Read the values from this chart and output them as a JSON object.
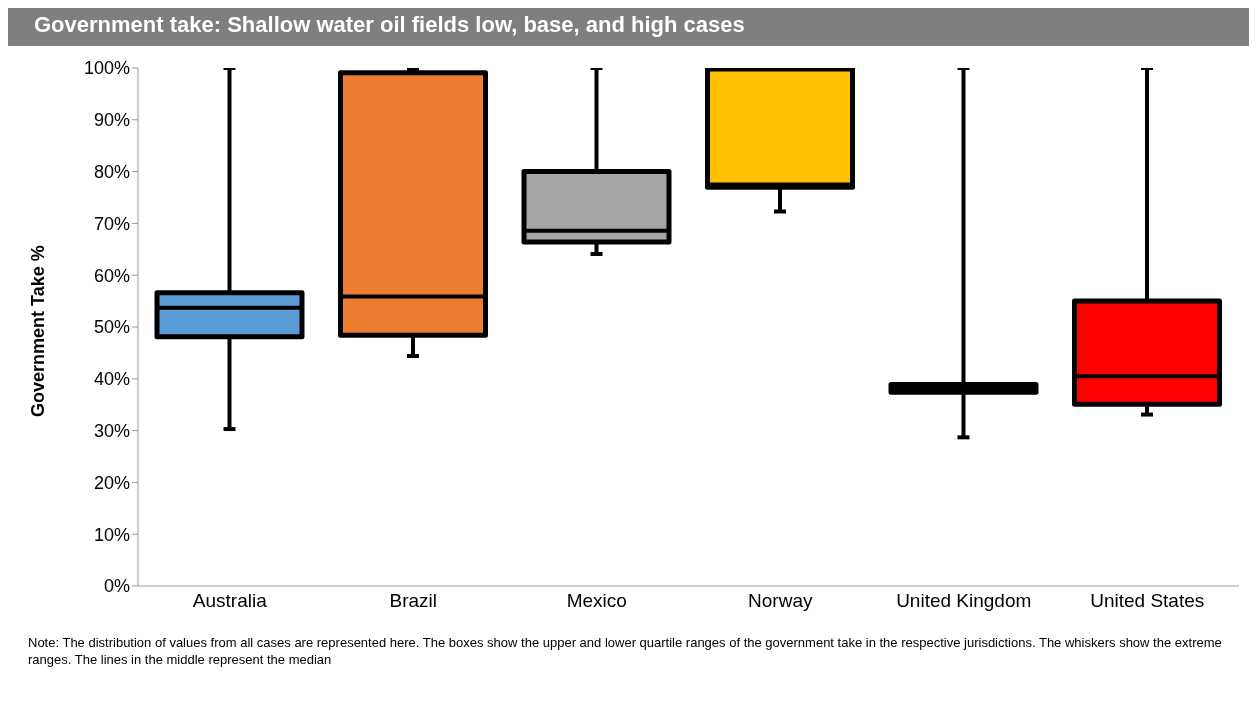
{
  "chart_data": {
    "type": "box",
    "title": "Government take: Shallow water oil fields   low, base, and high cases",
    "ylabel": "Government Take %",
    "categories": [
      "Australia",
      "Brazil",
      "Mexico",
      "Norway",
      "United Kingdom",
      "United States"
    ],
    "colors": [
      "#5b9bd5",
      "#ed7d31",
      "#a5a5a5",
      "#ffc000",
      "#1f3864",
      "#ff0000"
    ],
    "boxes": [
      {
        "low": 30.3,
        "q1": 48.1,
        "median": 53.7,
        "q3": 56.6,
        "high": 100
      },
      {
        "low": 44.4,
        "q1": 48.4,
        "median": 55.9,
        "q3": 99.1,
        "high": 99.8
      },
      {
        "low": 64.1,
        "q1": 66.4,
        "median": 68.6,
        "q3": 80.0,
        "high": 100
      },
      {
        "low": 72.3,
        "q1": 77.0,
        "median": 77.5,
        "q3": 99.8,
        "high": 100
      },
      {
        "low": 28.7,
        "q1": 37.4,
        "median": 38.2,
        "q3": 38.9,
        "high": 100
      },
      {
        "low": 33.1,
        "q1": 35.1,
        "median": 40.5,
        "q3": 55.0,
        "high": 100
      }
    ],
    "ylim": [
      0,
      100
    ],
    "yticks": [
      {
        "value": 0,
        "label": "0%"
      },
      {
        "value": 10,
        "label": "10%"
      },
      {
        "value": 20,
        "label": "20%"
      },
      {
        "value": 30,
        "label": "30%"
      },
      {
        "value": 40,
        "label": "40%"
      },
      {
        "value": 50,
        "label": "50%"
      },
      {
        "value": 60,
        "label": "60%"
      },
      {
        "value": 70,
        "label": "70%"
      },
      {
        "value": 80,
        "label": "80%"
      },
      {
        "value": 90,
        "label": "90%"
      },
      {
        "value": 100,
        "label": "100%"
      }
    ],
    "grid": false,
    "legend": false,
    "annotations": [
      "Note:  The distribution of values from all cases are represented here. The boxes show the upper and lower quartile ranges of the government take in the respective jurisdictions. The whiskers show the extreme ranges. The lines in the middle represent the median"
    ]
  }
}
